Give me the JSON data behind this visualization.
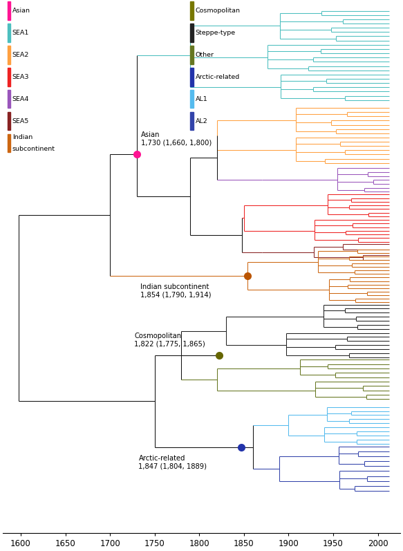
{
  "xlim": [
    1580,
    2025
  ],
  "ylim": [
    0,
    100
  ],
  "xlabel_ticks": [
    1600,
    1650,
    1700,
    1750,
    1800,
    1850,
    1900,
    1950,
    2000
  ],
  "colors": {
    "asian_dot": "#FF1493",
    "sea1": "#4CBFBF",
    "sea2": "#FFA040",
    "sea3": "#EE2222",
    "sea4": "#9955BB",
    "sea5": "#882222",
    "indian": "#CC6611",
    "cosmo": "#777700",
    "steppe": "#222222",
    "other": "#667722",
    "arctic_dot": "#2233AA",
    "al1": "#55BBEE",
    "al2": "#3344AA",
    "black": "#111111",
    "indian_dot": "#BB5500",
    "cosmo_dot": "#666600"
  },
  "figsize": [
    5.83,
    7.97
  ],
  "dpi": 100
}
